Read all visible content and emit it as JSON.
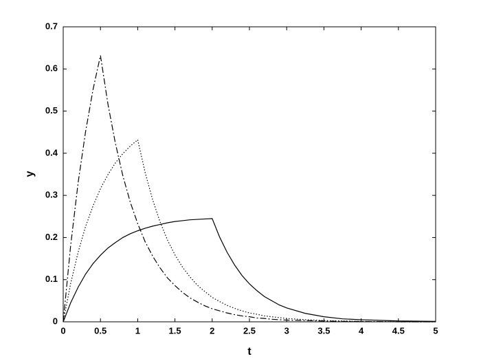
{
  "chart_data": {
    "type": "line",
    "x_label": "t",
    "y_label": "y",
    "x": [
      0,
      0.1,
      0.2,
      0.3,
      0.4,
      0.5,
      0.6,
      0.7,
      0.8,
      0.9,
      1,
      1.1,
      1.2,
      1.3,
      1.4,
      1.5,
      1.6,
      1.7,
      1.8,
      1.9,
      2,
      2.1,
      2.2,
      2.3,
      2.4,
      2.5,
      2.6,
      2.7,
      2.8,
      2.9,
      3,
      3.25,
      3.5,
      3.75,
      4,
      4.5,
      5
    ],
    "series": [
      {
        "color": "#000000",
        "style": "solid",
        "values": [
          0,
          0.045,
          0.082,
          0.113,
          0.138,
          0.158,
          0.175,
          0.188,
          0.2,
          0.209,
          0.216,
          0.222,
          0.227,
          0.231,
          0.235,
          0.238,
          0.24,
          0.242,
          0.243,
          0.244,
          0.245,
          0.201,
          0.165,
          0.135,
          0.11,
          0.09,
          0.074,
          0.06,
          0.05,
          0.04,
          0.033,
          0.02,
          0.012,
          0.007,
          0.005,
          0.002,
          0.001
        ]
      },
      {
        "color": "#000000",
        "style": "dotted",
        "values": [
          0,
          0.091,
          0.165,
          0.226,
          0.275,
          0.316,
          0.349,
          0.377,
          0.399,
          0.417,
          0.432,
          0.354,
          0.29,
          0.237,
          0.194,
          0.159,
          0.13,
          0.107,
          0.087,
          0.072,
          0.058,
          0.048,
          0.039,
          0.032,
          0.026,
          0.021,
          0.018,
          0.014,
          0.012,
          0.01,
          0.008,
          0.005,
          0.003,
          0.002,
          0.001,
          0,
          0
        ]
      },
      {
        "color": "#000000",
        "style": "dashdot",
        "values": [
          0,
          0.181,
          0.33,
          0.451,
          0.551,
          0.632,
          0.517,
          0.424,
          0.347,
          0.284,
          0.233,
          0.19,
          0.156,
          0.128,
          0.104,
          0.086,
          0.07,
          0.057,
          0.047,
          0.038,
          0.031,
          0.026,
          0.021,
          0.017,
          0.014,
          0.012,
          0.009,
          0.008,
          0.006,
          0.005,
          0.004,
          0.003,
          0.002,
          0.001,
          0.001,
          0,
          0
        ]
      }
    ],
    "xlim": [
      0,
      5
    ],
    "xticks": [
      0,
      0.5,
      1,
      1.5,
      2,
      2.5,
      3,
      3.5,
      4,
      4.5,
      5
    ],
    "ylim": [
      0,
      0.7
    ],
    "yticks": [
      0,
      0.1,
      0.2,
      0.3,
      0.4,
      0.5,
      0.6,
      0.7
    ],
    "grid": false
  }
}
